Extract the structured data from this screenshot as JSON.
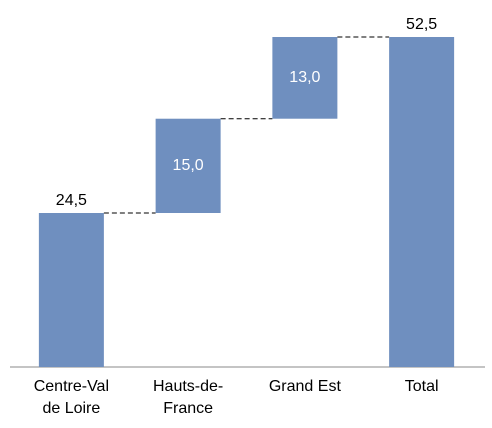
{
  "chart_data": {
    "type": "waterfall",
    "categories": [
      "Centre-Val de Loire",
      "Hauts-de-France",
      "Grand Est",
      "Total"
    ],
    "values": [
      24.5,
      15.0,
      13.0,
      52.5
    ],
    "value_labels": [
      "24,5",
      "15,0",
      "13,0",
      "52,5"
    ],
    "color": "#6f8fbf"
  }
}
